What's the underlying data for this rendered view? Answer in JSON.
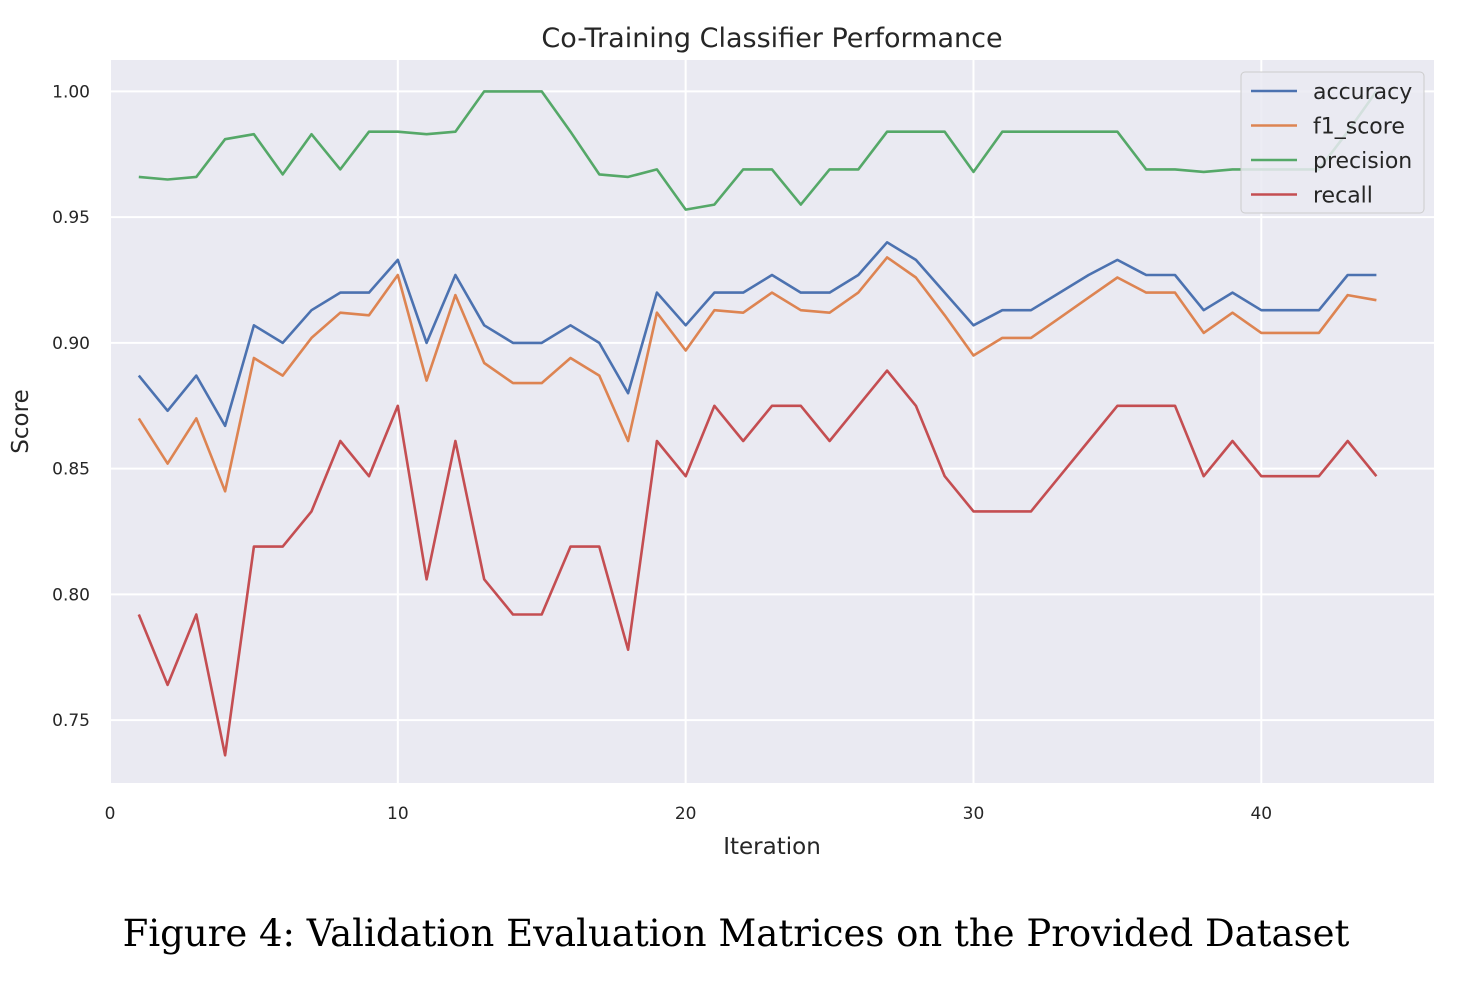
{
  "caption": "Figure 4: Validation Evaluation Matrices on the Provided Dataset",
  "chart_data": {
    "type": "line",
    "title": "Co-Training Classifier Performance",
    "xlabel": "Iteration",
    "ylabel": "Score",
    "xlim": [
      0,
      46
    ],
    "ylim": [
      0.725,
      1.0125
    ],
    "xticks": [
      0,
      10,
      20,
      30,
      40
    ],
    "xtick_labels": [
      "0",
      "10",
      "20",
      "30",
      "40"
    ],
    "yticks": [
      0.75,
      0.8,
      0.85,
      0.9,
      0.95,
      1.0
    ],
    "ytick_labels": [
      "0.75",
      "0.80",
      "0.85",
      "0.90",
      "0.95",
      "1.00"
    ],
    "grid": true,
    "legend_position": "top-right",
    "background_color": "#eaeaf2",
    "x": [
      1,
      2,
      3,
      4,
      5,
      6,
      7,
      8,
      9,
      10,
      11,
      12,
      13,
      14,
      15,
      16,
      17,
      18,
      19,
      20,
      21,
      22,
      23,
      24,
      25,
      26,
      27,
      28,
      29,
      30,
      31,
      32,
      33,
      34,
      35,
      36,
      37,
      38,
      39,
      40,
      41,
      42,
      43,
      44
    ],
    "series": [
      {
        "name": "accuracy",
        "color": "#4c72b0",
        "values": [
          0.887,
          0.873,
          0.887,
          0.867,
          0.907,
          0.9,
          0.913,
          0.92,
          0.92,
          0.933,
          0.9,
          0.927,
          0.907,
          0.9,
          0.9,
          0.907,
          0.9,
          0.88,
          0.92,
          0.907,
          0.92,
          0.92,
          0.927,
          0.92,
          0.92,
          0.927,
          0.94,
          0.933,
          0.92,
          0.907,
          0.913,
          0.913,
          0.92,
          0.927,
          0.933,
          0.927,
          0.927,
          0.913,
          0.92,
          0.913,
          0.913,
          0.913,
          0.927,
          0.927
        ]
      },
      {
        "name": "f1_score",
        "color": "#dd8452",
        "values": [
          0.87,
          0.852,
          0.87,
          0.841,
          0.894,
          0.887,
          0.902,
          0.912,
          0.911,
          0.927,
          0.885,
          0.919,
          0.892,
          0.884,
          0.884,
          0.894,
          0.887,
          0.861,
          0.912,
          0.897,
          0.913,
          0.912,
          0.92,
          0.913,
          0.912,
          0.92,
          0.934,
          0.926,
          0.911,
          0.895,
          0.902,
          0.902,
          0.91,
          0.918,
          0.926,
          0.92,
          0.92,
          0.904,
          0.912,
          0.904,
          0.904,
          0.904,
          0.919,
          0.917
        ]
      },
      {
        "name": "precision",
        "color": "#55a868",
        "values": [
          0.966,
          0.965,
          0.966,
          0.981,
          0.983,
          0.967,
          0.983,
          0.969,
          0.984,
          0.984,
          0.983,
          0.984,
          1.0,
          1.0,
          1.0,
          0.984,
          0.967,
          0.966,
          0.969,
          0.953,
          0.955,
          0.969,
          0.969,
          0.955,
          0.969,
          0.969,
          0.984,
          0.984,
          0.984,
          0.968,
          0.984,
          0.984,
          0.984,
          0.984,
          0.984,
          0.969,
          0.969,
          0.968,
          0.969,
          0.969,
          0.969,
          0.969,
          0.984,
          1.0
        ]
      },
      {
        "name": "recall",
        "color": "#c44e52",
        "values": [
          0.792,
          0.764,
          0.792,
          0.736,
          0.819,
          0.819,
          0.833,
          0.861,
          0.847,
          0.875,
          0.806,
          0.861,
          0.806,
          0.792,
          0.792,
          0.819,
          0.819,
          0.778,
          0.861,
          0.847,
          0.875,
          0.861,
          0.875,
          0.875,
          0.861,
          0.875,
          0.889,
          0.875,
          0.847,
          0.833,
          0.833,
          0.833,
          0.847,
          0.861,
          0.875,
          0.875,
          0.875,
          0.847,
          0.861,
          0.847,
          0.847,
          0.847,
          0.861,
          0.847
        ]
      }
    ]
  }
}
